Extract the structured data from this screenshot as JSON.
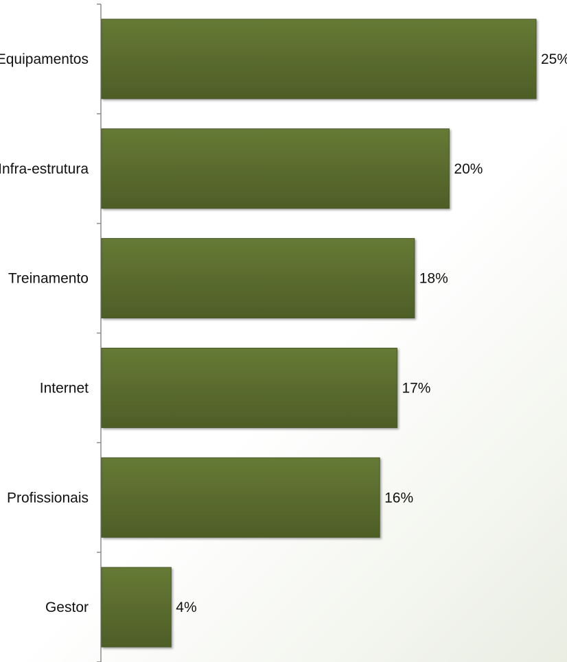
{
  "chart_data": {
    "type": "bar",
    "orientation": "horizontal",
    "categories": [
      "Equipamentos",
      "Infra-estrutura",
      "Treinamento",
      "Internet",
      "Profissionais",
      "Gestor"
    ],
    "values": [
      25,
      20,
      18,
      17,
      16,
      4
    ],
    "value_labels": [
      "25%",
      "20%",
      "18%",
      "17%",
      "16%",
      "4%"
    ],
    "unit": "%",
    "xlim": [
      0,
      25
    ],
    "grid": false,
    "legend": "none",
    "bar_color": "#5a6b2e"
  }
}
